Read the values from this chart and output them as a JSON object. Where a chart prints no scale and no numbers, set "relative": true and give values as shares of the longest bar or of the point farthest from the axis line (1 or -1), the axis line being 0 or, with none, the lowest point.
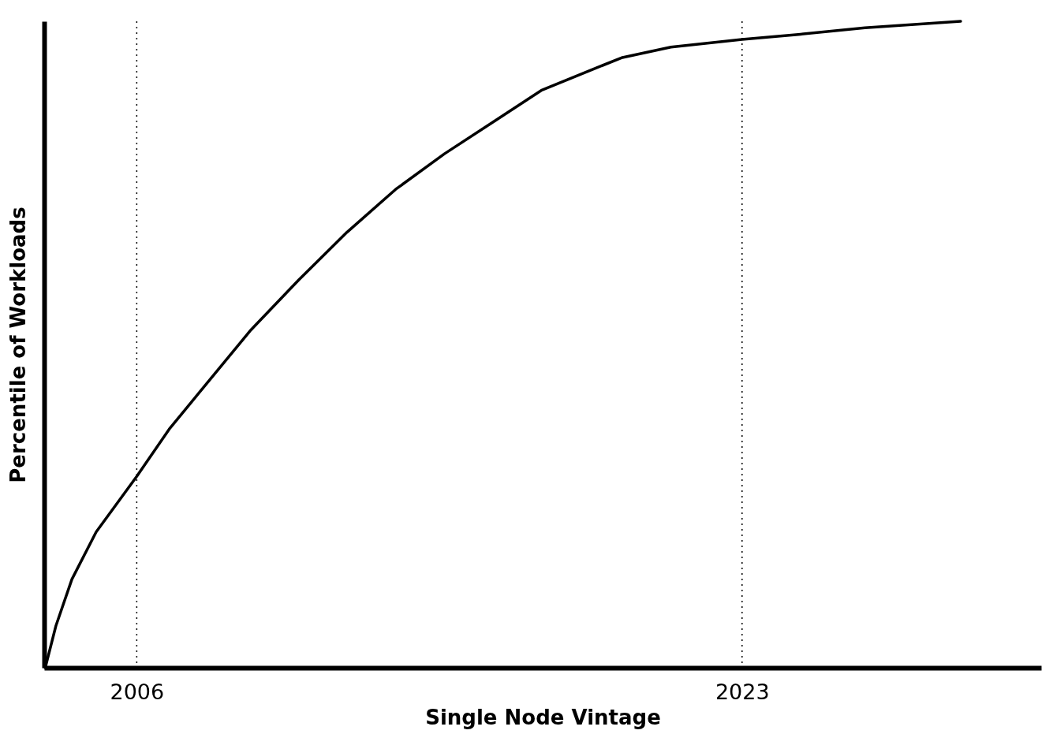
{
  "chart_data": {
    "type": "line",
    "xlabel": "Single Node Vintage",
    "ylabel": "Percentile of Workloads",
    "relative": true,
    "x": [
      2003.43,
      2003.73,
      2004.18,
      2004.86,
      2006,
      2006.91,
      2007.82,
      2009.18,
      2010.55,
      2011.91,
      2013.27,
      2014.64,
      2016,
      2017.36,
      2018.73,
      2019.64,
      2021,
      2023,
      2024.64,
      2026.45,
      2029.14
    ],
    "series": [
      {
        "color": "#000000",
        "values": [
          0,
          0.065,
          0.137,
          0.21,
          0.296,
          0.369,
          0.43,
          0.521,
          0.6,
          0.674,
          0.74,
          0.795,
          0.844,
          0.893,
          0.924,
          0.944,
          0.96,
          0.972,
          0.98,
          0.99,
          1.0
        ]
      }
    ],
    "xlim": [
      2003.4,
      2031.4
    ],
    "xticks": [
      2006,
      2023
    ],
    "grid": false,
    "line_style": "solid",
    "marker": "none",
    "ref_lines": [
      {
        "axis": "x",
        "value": 2006,
        "line_style": "dotted"
      },
      {
        "axis": "x",
        "value": 2023,
        "line_style": "dotted"
      }
    ]
  }
}
